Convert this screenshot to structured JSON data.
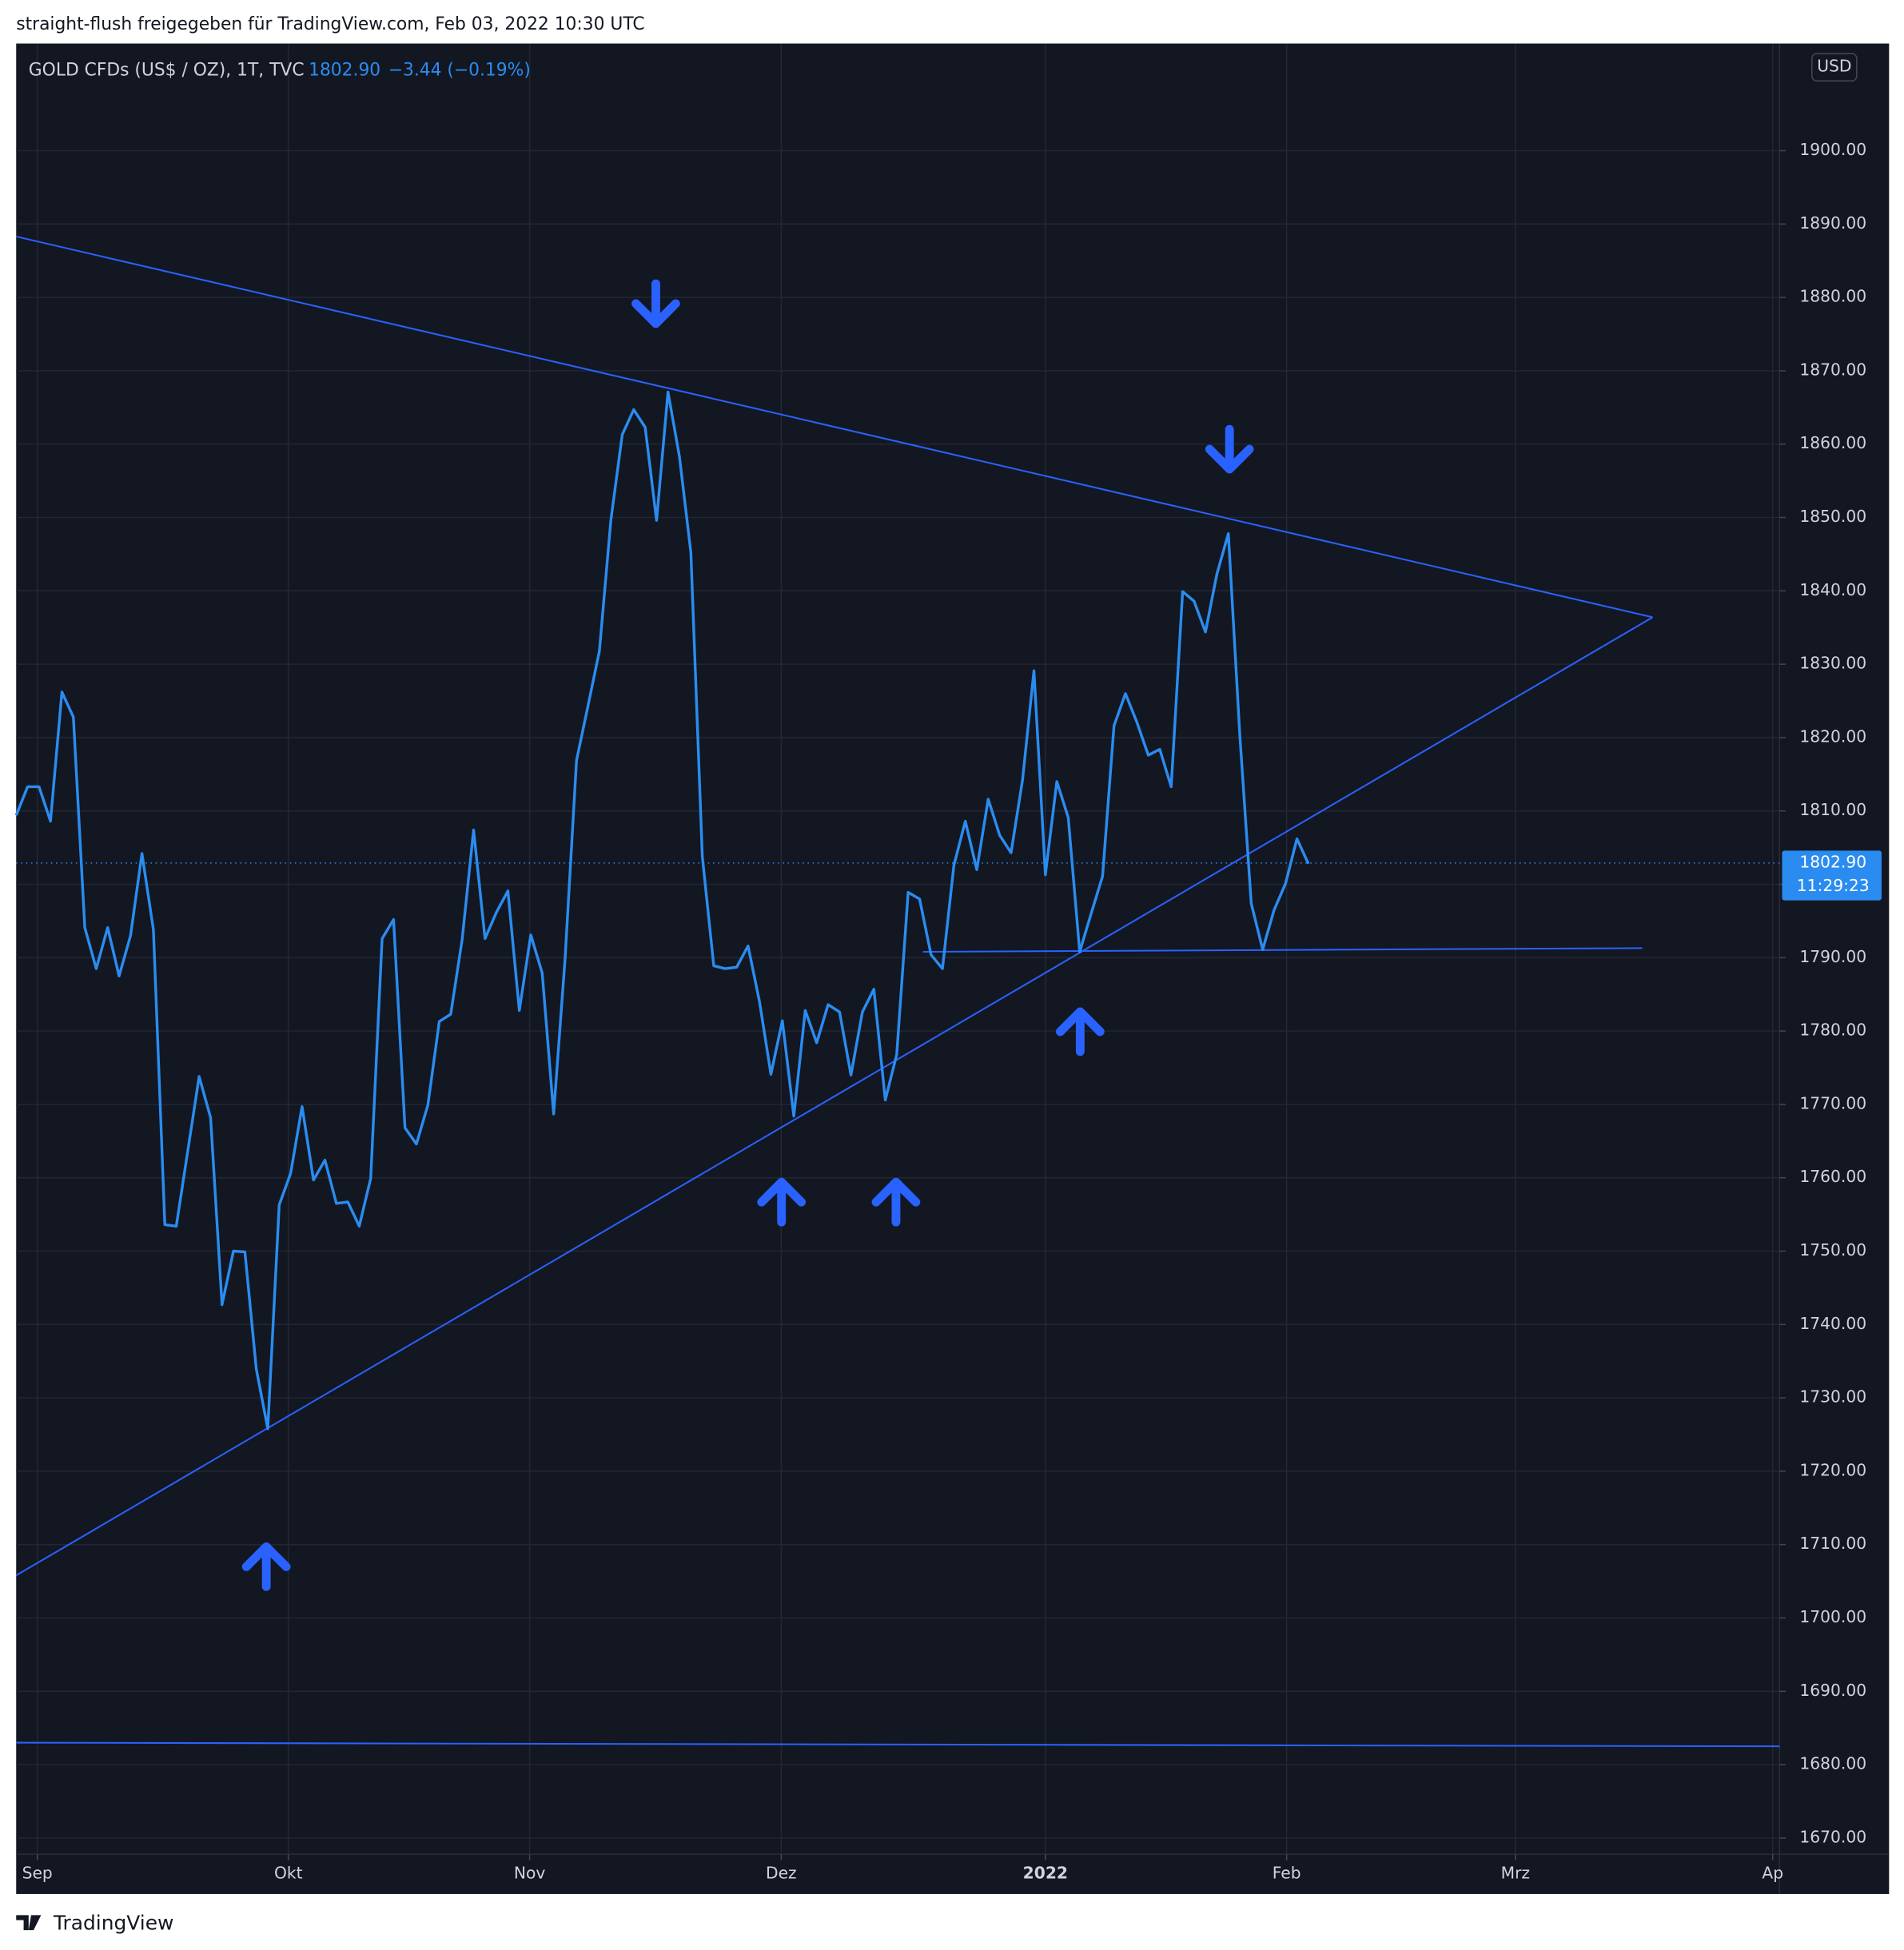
{
  "header": "straight-flush freigegeben für TradingView.com, Feb 03, 2022 10:30 UTC",
  "brand": "TradingView",
  "chart_data": {
    "type": "line",
    "symbol": "GOLD CFDs (US$ / OZ), 1T, TVC",
    "legend_price": "1802.90",
    "legend_change": "−3.44 (−0.19%)",
    "currency": "USD",
    "last_price": {
      "value": 1802.9,
      "label": "1802.90"
    },
    "countdown": "11:29:23",
    "grid": true,
    "background": "#131722",
    "series": [
      {
        "color": "#2a8cf0",
        "x": [
          0,
          1,
          2,
          3,
          4,
          5,
          6,
          7,
          8,
          9,
          10,
          11,
          12,
          13,
          14,
          15,
          16,
          17,
          18,
          19,
          20,
          21,
          22,
          23,
          24,
          25,
          26,
          27,
          28,
          29,
          30,
          31,
          32,
          33,
          34,
          35,
          36,
          37,
          38,
          39,
          40,
          41,
          42,
          43,
          44,
          45,
          46,
          47,
          48,
          49,
          50,
          51,
          52,
          53,
          54,
          55,
          56,
          57,
          58,
          59,
          60,
          61,
          62,
          63,
          64,
          65,
          66,
          67,
          68,
          69,
          70,
          71,
          72,
          73,
          74,
          75,
          76,
          77,
          78,
          79,
          80,
          81,
          82,
          83,
          84,
          85,
          86,
          87,
          88,
          89,
          90,
          91,
          92,
          93,
          94,
          95,
          96,
          97,
          98,
          99,
          100,
          101,
          102,
          103,
          104,
          105,
          106,
          107,
          108,
          109,
          110,
          111,
          112,
          113
        ],
        "values": [
          1809.4,
          1813.3,
          1813.3,
          1808.6,
          1826.2,
          1822.8,
          1794.1,
          1788.5,
          1794.1,
          1787.5,
          1793.0,
          1804.2,
          1793.8,
          1753.6,
          1753.4,
          1763.6,
          1773.8,
          1768.2,
          1742.7,
          1750.0,
          1749.9,
          1733.9,
          1725.8,
          1756.3,
          1760.6,
          1769.7,
          1759.7,
          1762.4,
          1756.5,
          1756.7,
          1753.4,
          1759.9,
          1792.6,
          1795.2,
          1766.8,
          1764.6,
          1769.9,
          1781.3,
          1782.3,
          1792.5,
          1807.4,
          1792.6,
          1796.2,
          1799.1,
          1782.8,
          1793.1,
          1787.9,
          1768.7,
          1789.9,
          1816.9,
          1824.3,
          1831.8,
          1849.6,
          1861.3,
          1864.7,
          1862.3,
          1849.6,
          1867.1,
          1858.3,
          1845.2,
          1803.8,
          1788.9,
          1788.5,
          1788.7,
          1791.6,
          1784.0,
          1774.1,
          1781.4,
          1768.4,
          1782.8,
          1778.4,
          1783.6,
          1782.6,
          1774.0,
          1782.6,
          1785.7,
          1770.6,
          1776.8,
          1798.9,
          1798.0,
          1790.4,
          1788.5,
          1802.6,
          1808.6,
          1802.0,
          1811.6,
          1806.7,
          1804.3,
          1814.2,
          1829.1,
          1801.3,
          1814.0,
          1809.1,
          1790.8,
          1796.0,
          1801.1,
          1821.6,
          1826.0,
          1822.1,
          1817.6,
          1818.4,
          1813.3,
          1839.9,
          1838.6,
          1834.4,
          1842.3,
          1847.8,
          1820.4,
          1797.4,
          1791.1,
          1796.5,
          1800.1,
          1806.2,
          1802.8
        ]
      }
    ],
    "trendlines": [
      {
        "color": "#2962ff",
        "x": [
          0,
          143.1
        ],
        "y": [
          1888.3,
          1836.4
        ]
      },
      {
        "color": "#2962ff",
        "x": [
          0,
          143.1
        ],
        "y": [
          1705.8,
          1836.4
        ]
      },
      {
        "color": "#2962ff",
        "x": [
          79.3,
          142.2
        ],
        "y": [
          1790.8,
          1791.3
        ]
      },
      {
        "color": "#2962ff",
        "x": [
          0,
          154.2
        ],
        "y": [
          1683.0,
          1682.5
        ]
      }
    ],
    "xlim": [
      0,
      154.2
    ],
    "xticks": [
      {
        "value": 1.85,
        "label": "Sep"
      },
      {
        "value": 23.8,
        "label": "Okt"
      },
      {
        "value": 44.9,
        "label": "Nov"
      },
      {
        "value": 66.9,
        "label": "Dez"
      },
      {
        "value": 90.0,
        "label": "2022"
      },
      {
        "value": 111.1,
        "label": "Feb"
      },
      {
        "value": 131.1,
        "label": "Mrz"
      },
      {
        "value": 153.6,
        "label": "Ap"
      }
    ],
    "ylim": [
      1667.8,
      1914.6
    ],
    "yticks": [
      {
        "value": 1670,
        "label": "1670.00"
      },
      {
        "value": 1680,
        "label": "1680.00"
      },
      {
        "value": 1690,
        "label": "1690.00"
      },
      {
        "value": 1700,
        "label": "1700.00"
      },
      {
        "value": 1710,
        "label": "1710.00"
      },
      {
        "value": 1720,
        "label": "1720.00"
      },
      {
        "value": 1730,
        "label": "1730.00"
      },
      {
        "value": 1740,
        "label": "1740.00"
      },
      {
        "value": 1750,
        "label": "1750.00"
      },
      {
        "value": 1760,
        "label": "1760.00"
      },
      {
        "value": 1770,
        "label": "1770.00"
      },
      {
        "value": 1780,
        "label": "1780.00"
      },
      {
        "value": 1790,
        "label": "1790.00"
      },
      {
        "value": 1800,
        "label": "1800.00"
      },
      {
        "value": 1810,
        "label": "1810.00"
      },
      {
        "value": 1820,
        "label": "1820.00"
      },
      {
        "value": 1830,
        "label": "1830.00"
      },
      {
        "value": 1840,
        "label": "1840.00"
      },
      {
        "value": 1850,
        "label": "1850.00"
      },
      {
        "value": 1860,
        "label": "1860.00"
      },
      {
        "value": 1870,
        "label": "1870.00"
      },
      {
        "value": 1880,
        "label": "1880.00"
      },
      {
        "value": 1890,
        "label": "1890.00"
      },
      {
        "value": 1900,
        "label": "1900.00"
      }
    ]
  }
}
